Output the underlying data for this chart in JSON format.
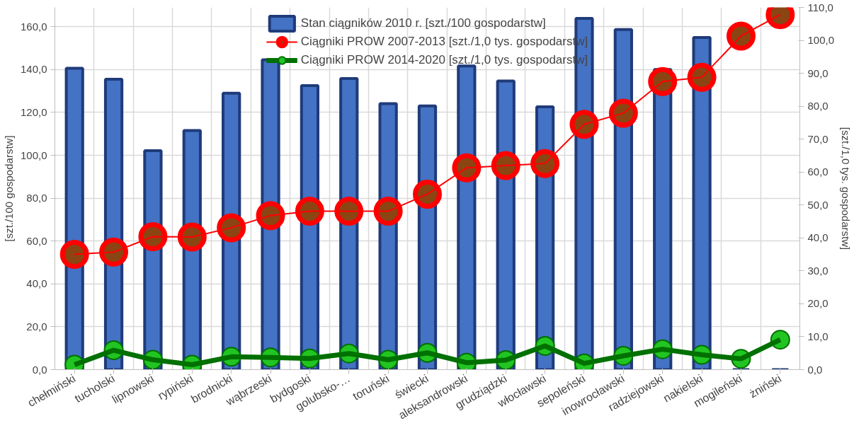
{
  "chart_data": {
    "type": "bar",
    "categories": [
      "chełmiński",
      "tucholski",
      "lipnowski",
      "rypiński",
      "brodnicki",
      "wąbrzeski",
      "bydgoski",
      "golubsko-…",
      "toruński",
      "świecki",
      "aleksandrowski",
      "grudziądzki",
      "włocławski",
      "sepoleński",
      "inowrocławski",
      "radziejowski",
      "nakielski",
      "mogileński",
      "żniński"
    ],
    "series": [
      {
        "name": "Stan ciągników 2010 r. [szt./100 gospodarstw]",
        "color": "#4472c4",
        "values": [
          140.6,
          135.5,
          102.2,
          111.6,
          129.0,
          144.6,
          132.5,
          135.8,
          124.1,
          123.0,
          141.7,
          134.7,
          122.6,
          163.9,
          158.7,
          140,
          155.0,
          null,
          null
        ]
      },
      {
        "name": "Ciągniki PROW 2007-2013 [szt./1,0 tys. gospodarstw]",
        "type": "line",
        "axis": "y2",
        "color": "#ff0000",
        "values": [
          35.0,
          35.7,
          40.4,
          40.3,
          43.1,
          46.8,
          48.1,
          48.1,
          48.1,
          53.3,
          61.3,
          62.0,
          62.6,
          74.5,
          77.9,
          87.5,
          88.8,
          101.3,
          107.8
        ]
      },
      {
        "name": "Ciągniki PROW 2014-2020 [szt./1,0 tys. gospodarstw]",
        "type": "line",
        "axis": "y2",
        "color": "#007000",
        "values": [
          1.5,
          5.9,
          3.0,
          1.5,
          3.9,
          3.7,
          3.4,
          4.9,
          3.0,
          5.1,
          2.1,
          2.9,
          7.2,
          1.9,
          4.2,
          6.2,
          4.5,
          3.3,
          9.1
        ]
      }
    ],
    "ylabel": "[szt./100 gospodarstw]",
    "y2label": "[szt./1,0 tys. gospodarstw]",
    "ylim": [
      0,
      169
    ],
    "yticks": [
      {
        "value": 0,
        "label": "0,0"
      },
      {
        "value": 20,
        "label": "20,0"
      },
      {
        "value": 40,
        "label": "40,0"
      },
      {
        "value": 60,
        "label": "60,0"
      },
      {
        "value": 80,
        "label": "80,0"
      },
      {
        "value": 100,
        "label": "100,0"
      },
      {
        "value": 120,
        "label": "120,0"
      },
      {
        "value": 140,
        "label": "140,0"
      },
      {
        "value": 160,
        "label": "160,0"
      }
    ],
    "y2lim": [
      0,
      110
    ],
    "y2ticks": [
      {
        "value": 0,
        "label": "0,0"
      },
      {
        "value": 10,
        "label": "10,0"
      },
      {
        "value": 20,
        "label": "20,0"
      },
      {
        "value": 30,
        "label": "30,0"
      },
      {
        "value": 40,
        "label": "40,0"
      },
      {
        "value": 50,
        "label": "50,0"
      },
      {
        "value": 60,
        "label": "60,0"
      },
      {
        "value": 70,
        "label": "70,0"
      },
      {
        "value": 80,
        "label": "80,0"
      },
      {
        "value": 90,
        "label": "90,0"
      },
      {
        "value": 100,
        "label": "100,0"
      },
      {
        "value": 110,
        "label": "110,0"
      }
    ],
    "grid": true,
    "legend": "top",
    "marker": "circle"
  }
}
